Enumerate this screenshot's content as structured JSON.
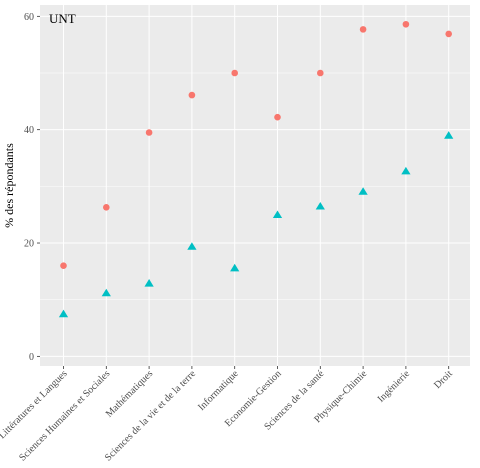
{
  "chart_data": {
    "type": "scatter",
    "panel_label": "UNT",
    "title": "",
    "xlabel": "",
    "ylabel": "% des répondants",
    "ylim": [
      -1.7,
      62
    ],
    "yticks": [
      "0",
      "20",
      "40",
      "60"
    ],
    "ytick_values": [
      0,
      20,
      40,
      60
    ],
    "grid": true,
    "legend": "none",
    "categories": [
      "Littératures et Langues",
      "Sciences Humaines et Sociales",
      "Mathématiques",
      "Sciences de la vie et de la terre",
      "Informatique",
      "Economie-Gestion",
      "Sciences de la santé",
      "Physique-Chimie",
      "Ingénierie",
      "Droit"
    ],
    "series": [
      {
        "marker": "circle",
        "color": "#f8766d",
        "values": [
          16.0,
          26.3,
          39.5,
          46.1,
          50.0,
          42.2,
          50.0,
          57.7,
          58.6,
          56.9
        ]
      },
      {
        "marker": "triangle",
        "color": "#00bfc4",
        "values": [
          7.5,
          11.2,
          12.9,
          19.4,
          15.6,
          25.0,
          26.5,
          29.1,
          32.7,
          39.0
        ]
      }
    ]
  },
  "style": {
    "panel_bg": "#ebebeb",
    "grid_major": "#ffffff"
  }
}
